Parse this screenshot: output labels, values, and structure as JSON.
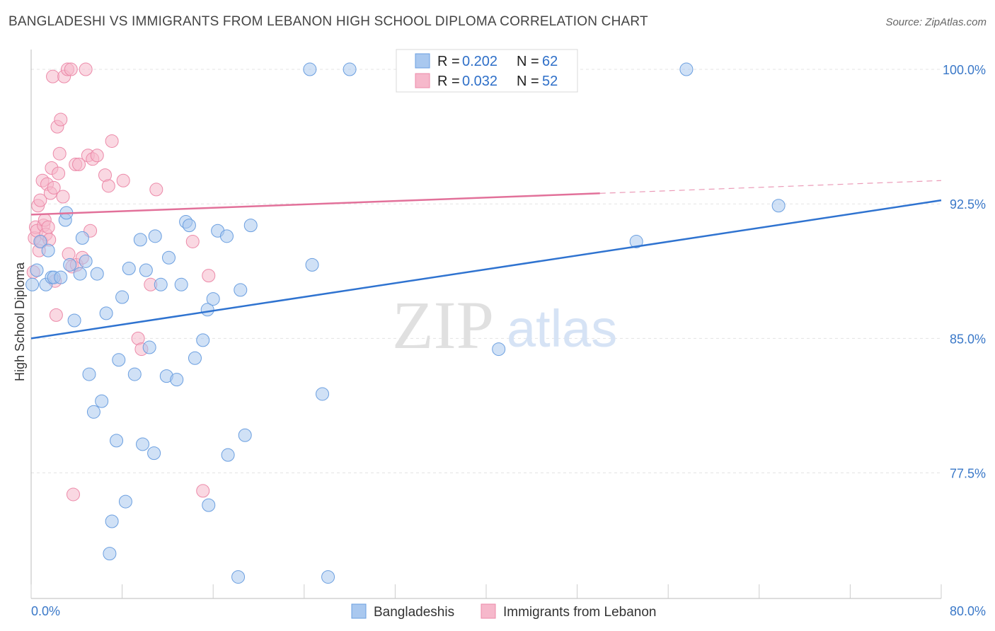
{
  "header": {
    "title": "BANGLADESHI VS IMMIGRANTS FROM LEBANON HIGH SCHOOL DIPLOMA CORRELATION CHART",
    "source": "Source: ZipAtlas.com"
  },
  "watermark": {
    "zip": "ZIP",
    "atlas": "atlas"
  },
  "legend_top": {
    "r_label": "R =",
    "n_label": "N =",
    "rows": [
      {
        "r": "0.202",
        "n": "62",
        "color": "#a9c8ef"
      },
      {
        "r": "0.032",
        "n": "52",
        "color": "#f6b8cb"
      }
    ]
  },
  "chart_data": {
    "type": "scatter",
    "title": "BANGLADESHI VS IMMIGRANTS FROM LEBANON HIGH SCHOOL DIPLOMA CORRELATION CHART",
    "xlabel": "",
    "ylabel": "High School Diploma",
    "xlim": [
      0,
      80
    ],
    "ylim": [
      70.5,
      101.5
    ],
    "x_tick_labels": [
      "0.0%",
      "80.0%"
    ],
    "y_ticks": [
      77.5,
      85.0,
      92.5,
      100.0
    ],
    "y_tick_labels": [
      "77.5%",
      "85.0%",
      "92.5%",
      "100.0%"
    ],
    "grid": true,
    "series": [
      {
        "name": "Bangladeshis",
        "color": "#a9c8ef",
        "stroke": "#6b9fe0",
        "trend_color": "#2f73d0",
        "trend": {
          "x0": 0,
          "y0": 85.0,
          "x1": 80,
          "y1": 92.7,
          "dashed_from": null
        },
        "points": [
          [
            0.1,
            88.0
          ],
          [
            0.5,
            88.8
          ],
          [
            0.8,
            90.4
          ],
          [
            1.3,
            88.0
          ],
          [
            1.5,
            89.9
          ],
          [
            1.8,
            88.4
          ],
          [
            2.0,
            88.4
          ],
          [
            2.6,
            88.4
          ],
          [
            3.0,
            91.6
          ],
          [
            3.1,
            92.0
          ],
          [
            3.4,
            89.1
          ],
          [
            3.8,
            86.0
          ],
          [
            4.3,
            88.6
          ],
          [
            4.5,
            90.6
          ],
          [
            4.8,
            89.3
          ],
          [
            5.1,
            83.0
          ],
          [
            5.5,
            80.9
          ],
          [
            5.8,
            88.6
          ],
          [
            6.2,
            81.5
          ],
          [
            6.6,
            86.4
          ],
          [
            6.9,
            73.0
          ],
          [
            7.1,
            74.8
          ],
          [
            7.5,
            79.3
          ],
          [
            7.7,
            83.8
          ],
          [
            8.0,
            87.3
          ],
          [
            8.3,
            75.9
          ],
          [
            8.6,
            88.9
          ],
          [
            9.1,
            83.0
          ],
          [
            9.6,
            90.5
          ],
          [
            9.8,
            79.1
          ],
          [
            10.1,
            88.8
          ],
          [
            10.4,
            84.5
          ],
          [
            10.8,
            78.6
          ],
          [
            10.9,
            90.7
          ],
          [
            11.4,
            88.0
          ],
          [
            11.9,
            82.9
          ],
          [
            12.1,
            89.5
          ],
          [
            12.8,
            82.7
          ],
          [
            13.2,
            88.0
          ],
          [
            13.6,
            91.5
          ],
          [
            13.9,
            91.3
          ],
          [
            14.4,
            83.9
          ],
          [
            15.1,
            84.9
          ],
          [
            15.5,
            86.6
          ],
          [
            15.6,
            75.7
          ],
          [
            16.0,
            87.2
          ],
          [
            16.4,
            91.0
          ],
          [
            17.2,
            90.7
          ],
          [
            17.3,
            78.5
          ],
          [
            18.2,
            71.7
          ],
          [
            18.4,
            87.7
          ],
          [
            18.8,
            79.6
          ],
          [
            19.3,
            91.3
          ],
          [
            24.5,
            100.0
          ],
          [
            24.7,
            89.1
          ],
          [
            25.6,
            81.9
          ],
          [
            26.1,
            71.7
          ],
          [
            28.0,
            100.0
          ],
          [
            41.1,
            84.4
          ],
          [
            53.2,
            90.4
          ],
          [
            57.6,
            100.0
          ],
          [
            65.7,
            92.4
          ]
        ]
      },
      {
        "name": "Immigrants from Lebanon",
        "color": "#f6b8cb",
        "stroke": "#ec8aa9",
        "trend_color": "#e2719a",
        "trend": {
          "x0": 0,
          "y0": 91.9,
          "x1": 80,
          "y1": 93.8,
          "dashed_from": 50
        },
        "points": [
          [
            0.2,
            88.7
          ],
          [
            0.3,
            90.6
          ],
          [
            0.4,
            91.2
          ],
          [
            0.5,
            91.0
          ],
          [
            0.6,
            92.4
          ],
          [
            0.7,
            89.9
          ],
          [
            0.8,
            92.7
          ],
          [
            0.9,
            90.4
          ],
          [
            1.0,
            93.8
          ],
          [
            1.1,
            91.3
          ],
          [
            1.2,
            91.6
          ],
          [
            1.3,
            90.8
          ],
          [
            1.4,
            93.6
          ],
          [
            1.5,
            91.2
          ],
          [
            1.6,
            90.5
          ],
          [
            1.7,
            93.1
          ],
          [
            1.8,
            94.5
          ],
          [
            1.9,
            99.6
          ],
          [
            2.0,
            93.4
          ],
          [
            2.1,
            88.2
          ],
          [
            2.2,
            86.3
          ],
          [
            2.3,
            96.8
          ],
          [
            2.4,
            94.2
          ],
          [
            2.5,
            95.3
          ],
          [
            2.6,
            97.2
          ],
          [
            2.8,
            92.9
          ],
          [
            2.9,
            99.6
          ],
          [
            3.2,
            100.0
          ],
          [
            3.3,
            89.7
          ],
          [
            3.5,
            100.0
          ],
          [
            3.6,
            89.0
          ],
          [
            3.7,
            76.3
          ],
          [
            3.9,
            94.7
          ],
          [
            4.0,
            89.1
          ],
          [
            4.2,
            94.7
          ],
          [
            4.5,
            89.5
          ],
          [
            4.8,
            100.0
          ],
          [
            5.0,
            95.2
          ],
          [
            5.2,
            91.0
          ],
          [
            5.4,
            95.0
          ],
          [
            5.8,
            95.2
          ],
          [
            6.5,
            94.1
          ],
          [
            6.8,
            93.5
          ],
          [
            7.1,
            96.0
          ],
          [
            8.1,
            93.8
          ],
          [
            9.4,
            85.0
          ],
          [
            9.7,
            84.4
          ],
          [
            10.5,
            88.0
          ],
          [
            11.0,
            93.3
          ],
          [
            14.2,
            90.4
          ],
          [
            15.1,
            76.5
          ],
          [
            15.6,
            88.5
          ]
        ]
      }
    ]
  }
}
